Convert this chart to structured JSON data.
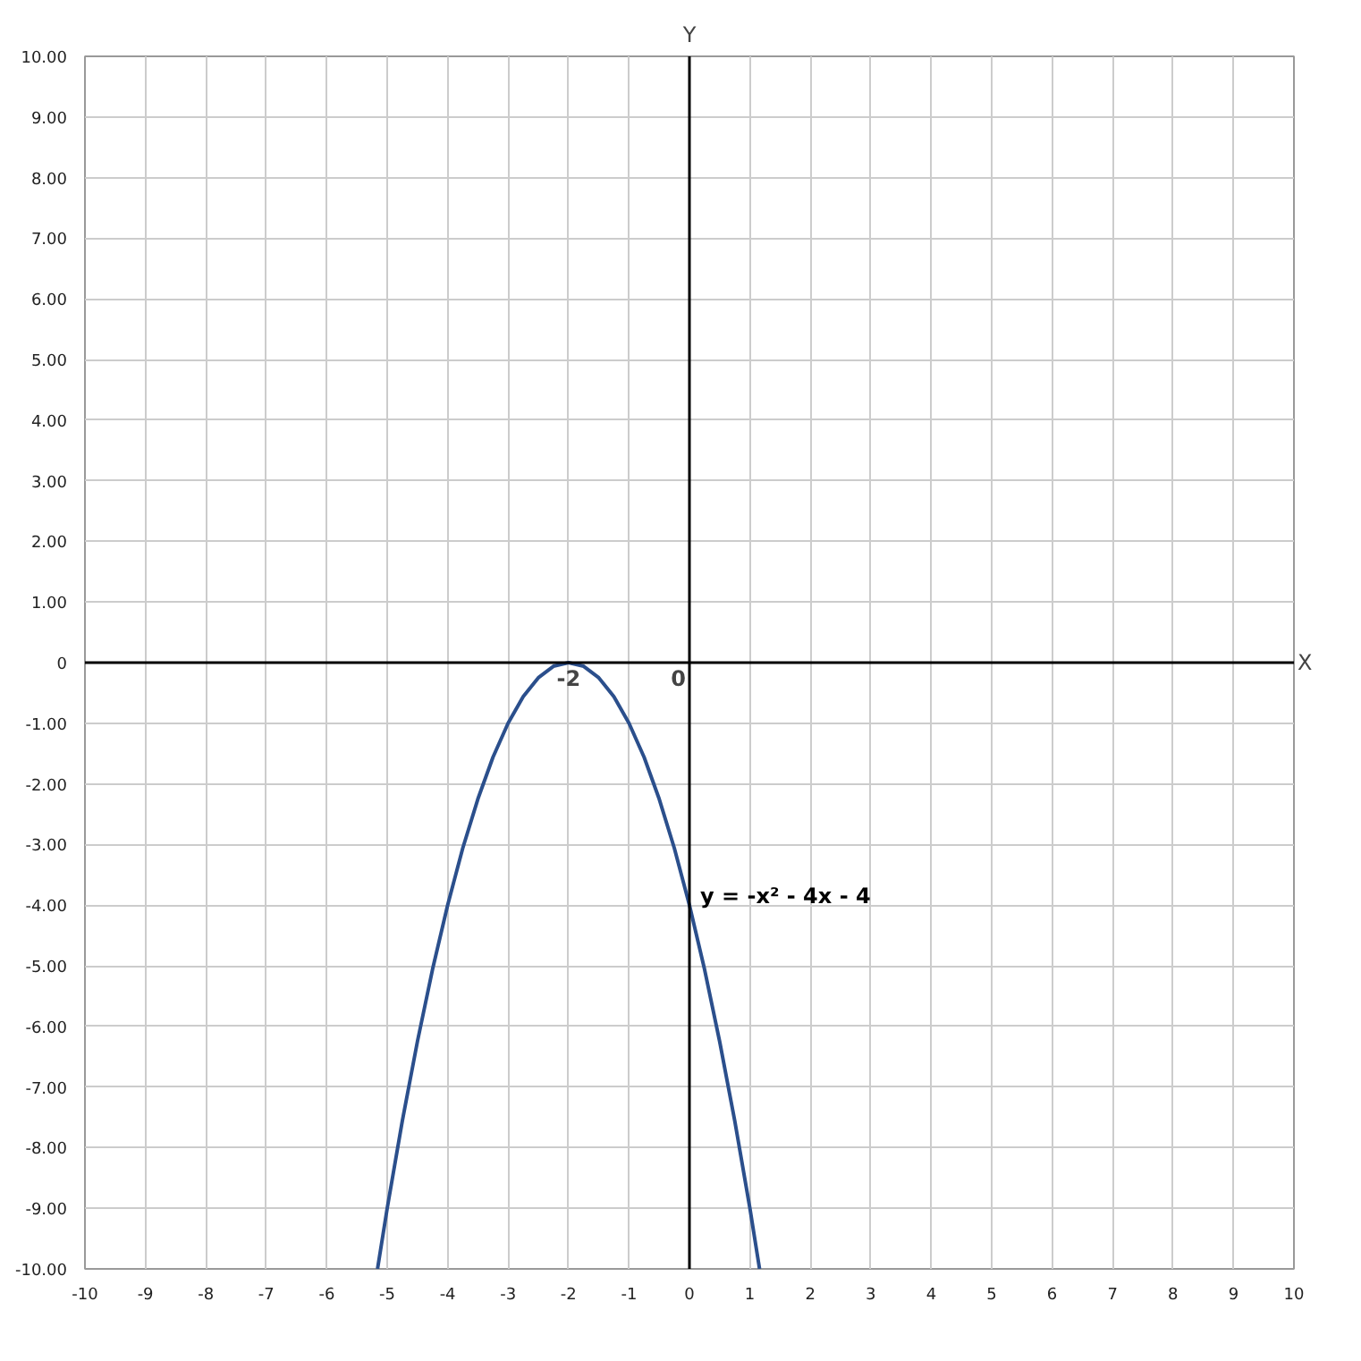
{
  "chart_data": {
    "type": "line",
    "xlabel": "X",
    "ylabel": "Y",
    "x": [
      -5.16,
      -5,
      -4.75,
      -4.5,
      -4.25,
      -4,
      -3.75,
      -3.5,
      -3.25,
      -3,
      -2.75,
      -2.5,
      -2.25,
      -2,
      -1.75,
      -1.5,
      -1.25,
      -1,
      -0.75,
      -0.5,
      -0.25,
      0,
      0.25,
      0.5,
      0.75,
      1,
      1.16
    ],
    "series": [
      {
        "name": "y = -x² - 4x - 4",
        "color": "#2b4f8c",
        "values": [
          -10,
          -9,
          -7.56,
          -6.25,
          -5.06,
          -4,
          -3.06,
          -2.25,
          -1.56,
          -1,
          -0.56,
          -0.25,
          -0.06,
          0,
          -0.06,
          -0.25,
          -0.56,
          -1,
          -1.56,
          -2.25,
          -3.06,
          -4,
          -5.06,
          -6.25,
          -7.56,
          -9,
          -10
        ]
      }
    ],
    "xlim": [
      -10,
      10
    ],
    "ylim": [
      -10,
      10
    ],
    "xticks": [
      -10,
      -9,
      -8,
      -7,
      -6,
      -5,
      -4,
      -3,
      -2,
      -1,
      0,
      1,
      2,
      3,
      4,
      5,
      6,
      7,
      8,
      9,
      10
    ],
    "yticks": [
      {
        "value": -10,
        "label": "-10.00"
      },
      {
        "value": -9,
        "label": "-9.00"
      },
      {
        "value": -8,
        "label": "-8.00"
      },
      {
        "value": -7,
        "label": "-7.00"
      },
      {
        "value": -6,
        "label": "-6.00"
      },
      {
        "value": -5,
        "label": "-5.00"
      },
      {
        "value": -4,
        "label": "-4.00"
      },
      {
        "value": -3,
        "label": "-3.00"
      },
      {
        "value": -2,
        "label": "-2.00"
      },
      {
        "value": -1,
        "label": "-1.00"
      },
      0,
      {
        "value": 1,
        "label": "1.00"
      },
      {
        "value": 2,
        "label": "2.00"
      },
      {
        "value": 3,
        "label": "3.00"
      },
      {
        "value": 4,
        "label": "4.00"
      },
      {
        "value": 5,
        "label": "5.00"
      },
      {
        "value": 6,
        "label": "6.00"
      },
      {
        "value": 7,
        "label": "7.00"
      },
      {
        "value": 8,
        "label": "8.00"
      },
      {
        "value": 9,
        "label": "9.00"
      },
      {
        "value": 10,
        "label": "10.00"
      }
    ],
    "annotations": [
      {
        "text": "-2",
        "x": -2,
        "y": 0
      },
      "0"
    ],
    "grid": true,
    "legend": false,
    "marker": "none",
    "line_style": "solid"
  }
}
